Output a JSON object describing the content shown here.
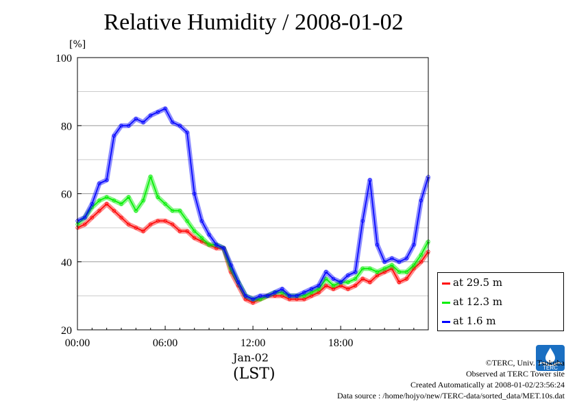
{
  "chart_data": {
    "type": "line",
    "title": "Relative Humidity / 2008-01-02",
    "ylabel": "[%]",
    "xlabel": "(LST)",
    "x_date_label": "Jan-02",
    "x_ticks": [
      "00:00",
      "06:00",
      "12:00",
      "18:00"
    ],
    "xlim_hours": [
      0,
      23.99
    ],
    "ylim": [
      20,
      100
    ],
    "y_ticks": [
      "20",
      "40",
      "60",
      "80",
      "100"
    ],
    "grid": "horizontal",
    "legend_position": "bottom-right",
    "x_hours": [
      0,
      0.5,
      1,
      1.5,
      2,
      2.5,
      3,
      3.5,
      4,
      4.5,
      5,
      5.5,
      6,
      6.5,
      7,
      7.5,
      8,
      8.5,
      9,
      9.5,
      10,
      10.5,
      11,
      11.5,
      12,
      12.5,
      13,
      13.5,
      14,
      14.5,
      15,
      15.5,
      16,
      16.5,
      17,
      17.5,
      18,
      18.5,
      19,
      19.5,
      20,
      20.5,
      21,
      21.5,
      22,
      22.5,
      23,
      23.5,
      24
    ],
    "series": [
      {
        "name": "at 29.5 m",
        "color": "#ff0000",
        "values": [
          50,
          51,
          53,
          55,
          57,
          55,
          53,
          51,
          50,
          49,
          51,
          52,
          52,
          51,
          49,
          49,
          47,
          46,
          45,
          44,
          44,
          37,
          33,
          29,
          28,
          29,
          30,
          30,
          30,
          29,
          29,
          29,
          30,
          31,
          33,
          32,
          33,
          32,
          33,
          35,
          34,
          36,
          37,
          38,
          34,
          35,
          38,
          40,
          43
        ]
      },
      {
        "name": "at 12.3 m",
        "color": "#00ee00",
        "values": [
          51,
          53,
          56,
          58,
          59,
          58,
          57,
          59,
          55,
          58,
          65,
          59,
          57,
          55,
          55,
          52,
          49,
          47,
          45,
          45,
          44,
          38,
          34,
          30,
          29,
          29,
          30,
          31,
          31,
          30,
          30,
          30,
          31,
          32,
          35,
          33,
          34,
          34,
          35,
          38,
          38,
          37,
          38,
          39,
          37,
          37,
          39,
          42,
          46
        ]
      },
      {
        "name": "at 1.6 m",
        "color": "#0000ff",
        "values": [
          52,
          53,
          57,
          63,
          64,
          77,
          80,
          80,
          82,
          81,
          83,
          84,
          85,
          81,
          80,
          78,
          60,
          52,
          48,
          45,
          44,
          39,
          34,
          30,
          29,
          30,
          30,
          31,
          32,
          30,
          30,
          31,
          32,
          33,
          37,
          35,
          34,
          36,
          37,
          52,
          64,
          45,
          40,
          41,
          40,
          41,
          45,
          58,
          65
        ]
      }
    ]
  },
  "credits": {
    "copyright": "©TERC, Univ. Tsukuba",
    "observed": "Observed at TERC Tower site",
    "created": "Created Automatically at 2008-01-02/23:56:24",
    "source": "Data source : /home/hojyo/new/TERC-data/sorted_data/MET.10s.dat"
  },
  "logo_text": "TERC",
  "colors": {
    "red": "#ff0000",
    "green": "#00ee00",
    "blue": "#0000ff"
  }
}
